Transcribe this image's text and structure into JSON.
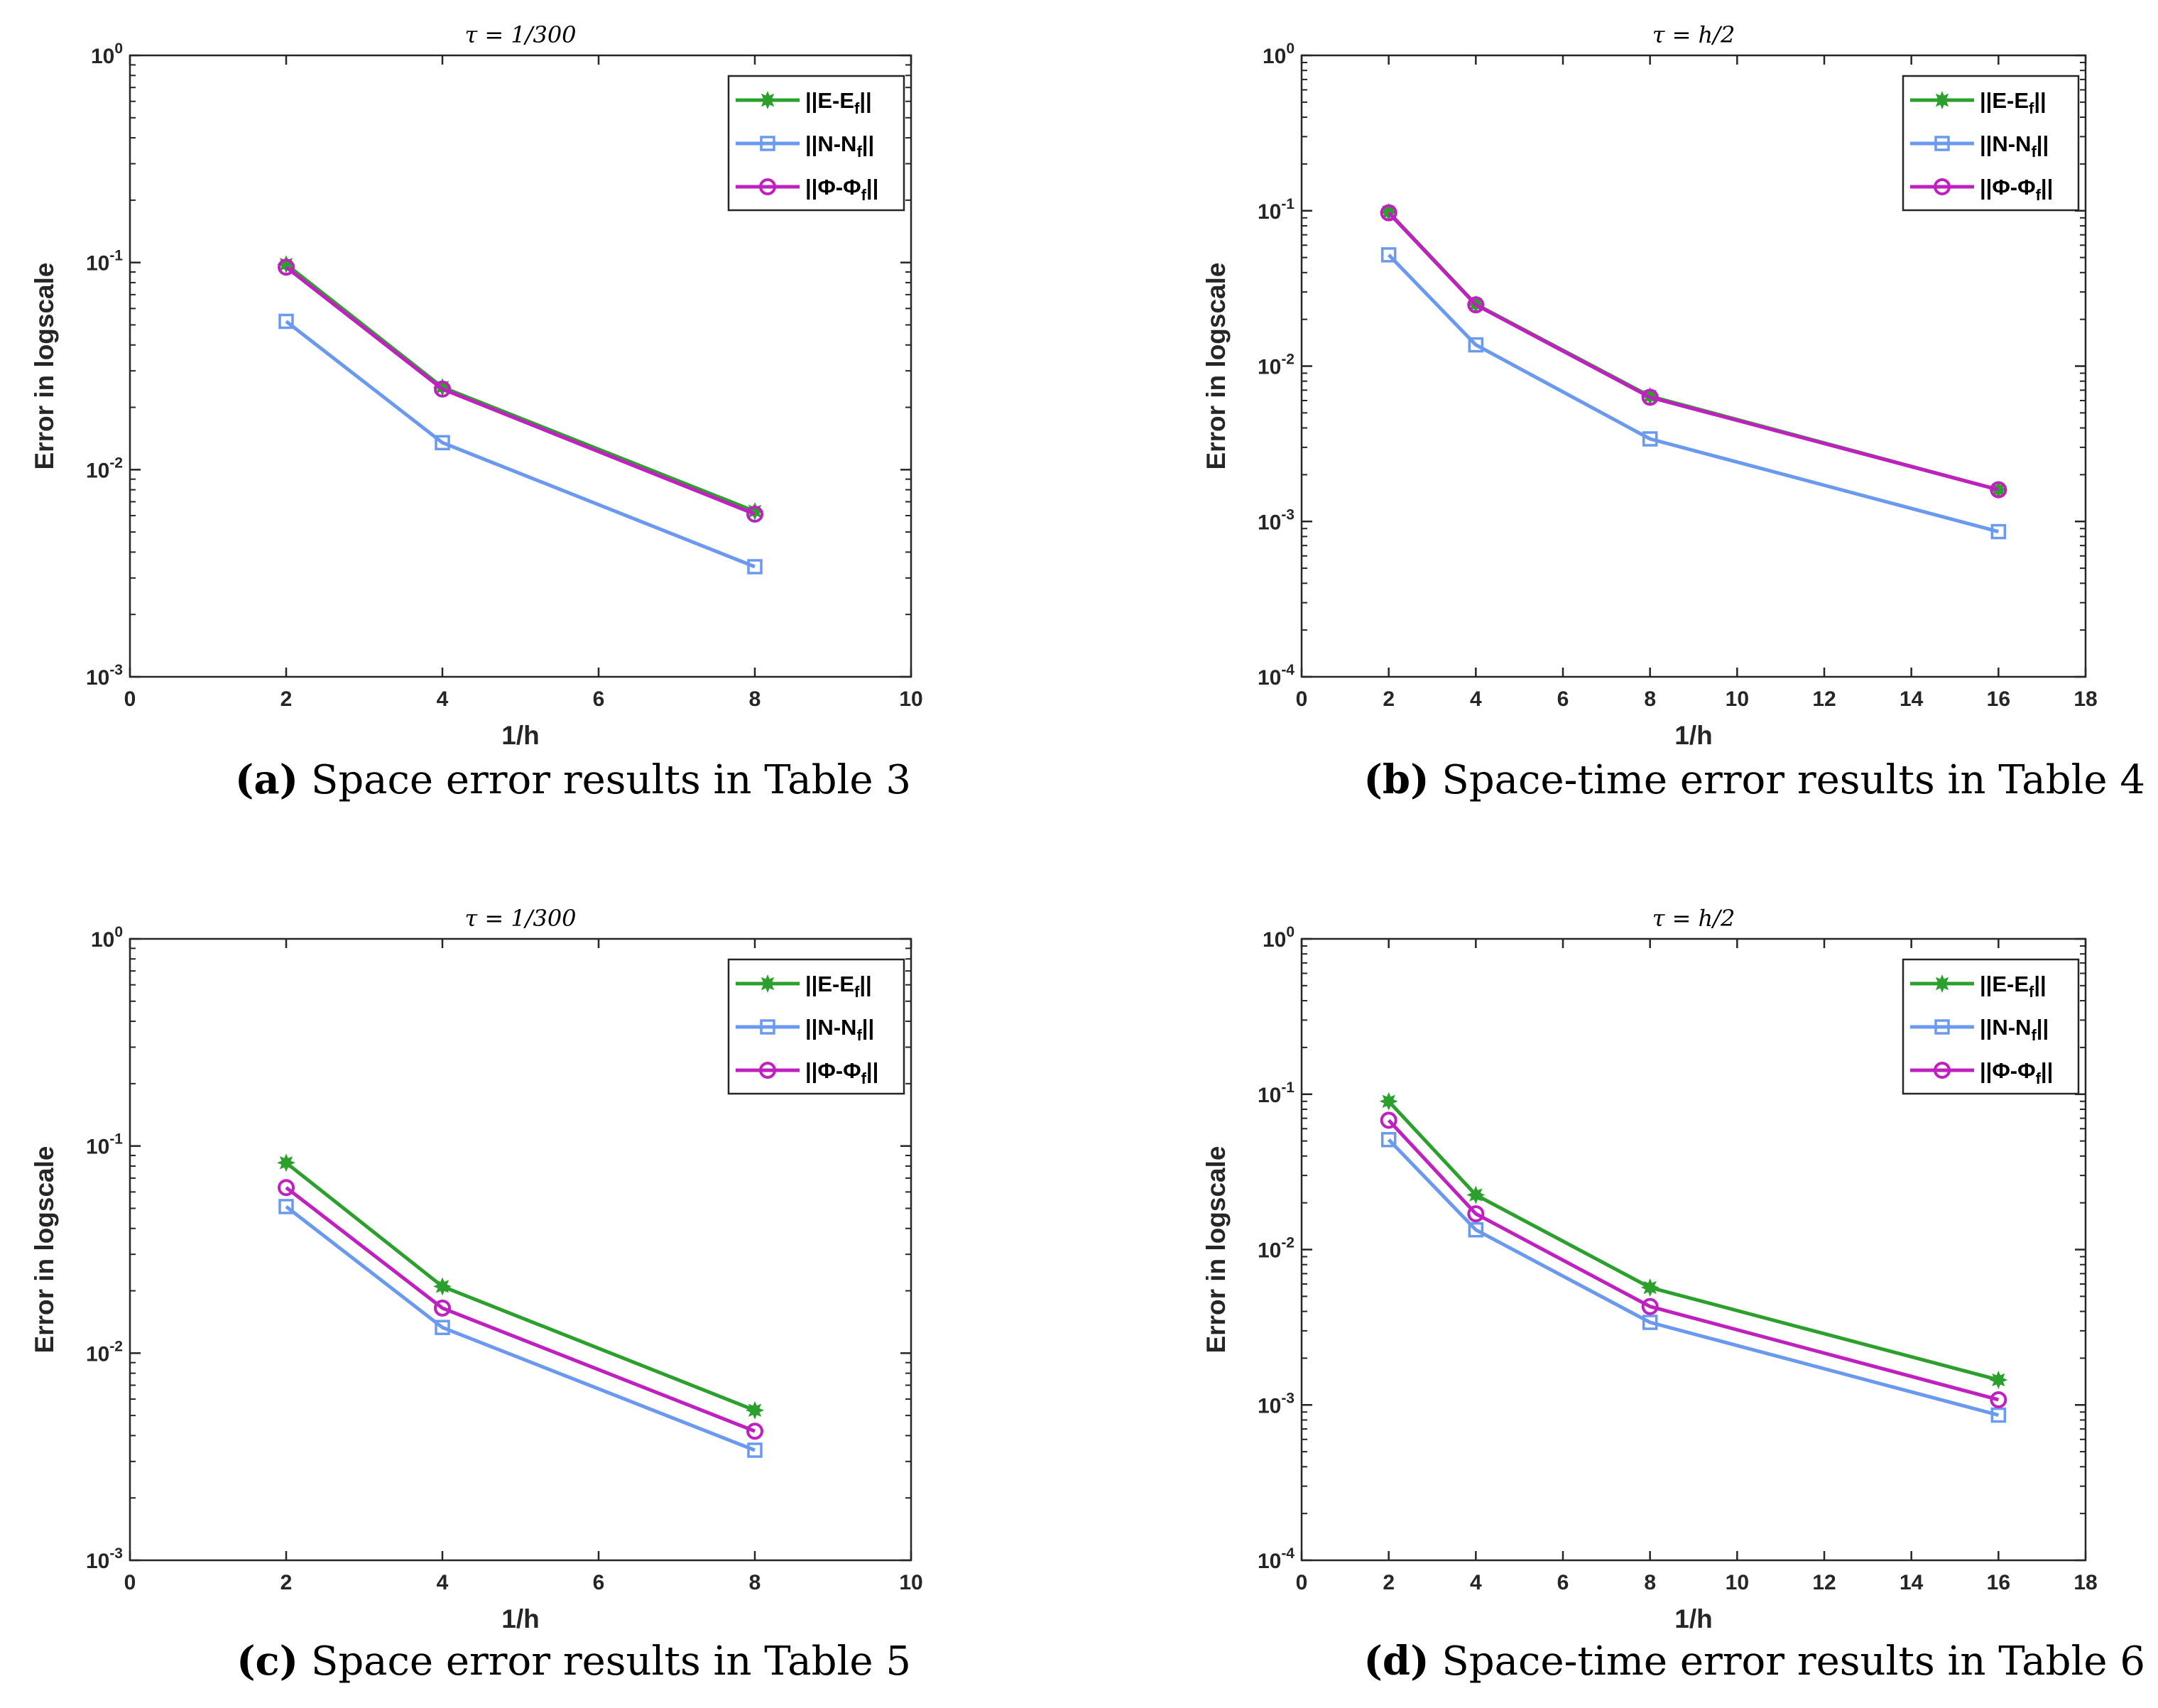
{
  "figure_colors": {
    "E": "#2ca02c",
    "N": "#6a9aef",
    "Phi": "#c020c0",
    "axis": "#262626"
  },
  "legend_labels": [
    {
      "pre": "||E-E",
      "sub": "f",
      "post": "||"
    },
    {
      "pre": "||N-N",
      "sub": "f",
      "post": "||"
    },
    {
      "pre": "||Φ-Φ",
      "sub": "f",
      "post": "||"
    }
  ],
  "chart_data": [
    {
      "type": "line",
      "title": "τ = 1/300",
      "xlabel": "1/h",
      "ylabel": "Error in logscale",
      "yscale": "log",
      "xlim": [
        0,
        10
      ],
      "xticks": [
        0,
        2,
        4,
        6,
        8,
        10
      ],
      "ylim": [
        0.001,
        1
      ],
      "yticks": [
        -3,
        -2,
        -1,
        0
      ],
      "x": [
        2,
        4,
        8
      ],
      "series": [
        {
          "name": "||E-Ef||",
          "key": "E",
          "marker": "star",
          "values": [
            0.098,
            0.025,
            0.0063
          ]
        },
        {
          "name": "||N-Nf||",
          "key": "N",
          "marker": "square",
          "values": [
            0.052,
            0.0135,
            0.0034
          ]
        },
        {
          "name": "||Φ-Φf||",
          "key": "Phi",
          "marker": "circle",
          "values": [
            0.095,
            0.0245,
            0.0061
          ]
        }
      ],
      "caption": {
        "letter": "(a)",
        "text": "Space error results in Table 3"
      }
    },
    {
      "type": "line",
      "title": "τ = h/2",
      "xlabel": "1/h",
      "ylabel": "Error in logscale",
      "yscale": "log",
      "xlim": [
        0,
        18
      ],
      "xticks": [
        0,
        2,
        4,
        6,
        8,
        10,
        12,
        14,
        16,
        18
      ],
      "ylim": [
        0.0001,
        1
      ],
      "yticks": [
        -4,
        -3,
        -2,
        -1,
        0
      ],
      "x": [
        2,
        4,
        8,
        16
      ],
      "series": [
        {
          "name": "||E-Ef||",
          "key": "E",
          "marker": "star",
          "values": [
            0.098,
            0.025,
            0.0064,
            0.0016
          ]
        },
        {
          "name": "||N-Nf||",
          "key": "N",
          "marker": "square",
          "values": [
            0.052,
            0.0137,
            0.0034,
            0.00086
          ]
        },
        {
          "name": "||Φ-Φf||",
          "key": "Phi",
          "marker": "circle",
          "values": [
            0.097,
            0.0248,
            0.0063,
            0.0016
          ]
        }
      ],
      "caption": {
        "letter": "(b)",
        "text": "Space-time error results in Table 4"
      }
    },
    {
      "type": "line",
      "title": "τ = 1/300",
      "xlabel": "1/h",
      "ylabel": "Error in logscale",
      "yscale": "log",
      "xlim": [
        0,
        10
      ],
      "xticks": [
        0,
        2,
        4,
        6,
        8,
        10
      ],
      "ylim": [
        0.001,
        1
      ],
      "yticks": [
        -3,
        -2,
        -1,
        0
      ],
      "x": [
        2,
        4,
        8
      ],
      "series": [
        {
          "name": "||E-Ef||",
          "key": "E",
          "marker": "star",
          "values": [
            0.083,
            0.021,
            0.0053
          ]
        },
        {
          "name": "||N-Nf||",
          "key": "N",
          "marker": "square",
          "values": [
            0.051,
            0.0133,
            0.0034
          ]
        },
        {
          "name": "||Φ-Φf||",
          "key": "Phi",
          "marker": "circle",
          "values": [
            0.063,
            0.0165,
            0.0042
          ]
        }
      ],
      "caption": {
        "letter": "(c)",
        "text": "Space error results in Table 5"
      }
    },
    {
      "type": "line",
      "title": "τ = h/2",
      "xlabel": "1/h",
      "ylabel": "Error in logscale",
      "yscale": "log",
      "xlim": [
        0,
        18
      ],
      "xticks": [
        0,
        2,
        4,
        6,
        8,
        10,
        12,
        14,
        16,
        18
      ],
      "ylim": [
        0.0001,
        1
      ],
      "yticks": [
        -4,
        -3,
        -2,
        -1,
        0
      ],
      "x": [
        2,
        4,
        8,
        16
      ],
      "series": [
        {
          "name": "||E-Ef||",
          "key": "E",
          "marker": "star",
          "values": [
            0.09,
            0.0225,
            0.0057,
            0.00145
          ]
        },
        {
          "name": "||N-Nf||",
          "key": "N",
          "marker": "square",
          "values": [
            0.051,
            0.0134,
            0.0034,
            0.00086
          ]
        },
        {
          "name": "||Φ-Φf||",
          "key": "Phi",
          "marker": "circle",
          "values": [
            0.068,
            0.017,
            0.0043,
            0.00108
          ]
        }
      ],
      "caption": {
        "letter": "(d)",
        "text": "Space-time error results in Table 6"
      }
    }
  ]
}
